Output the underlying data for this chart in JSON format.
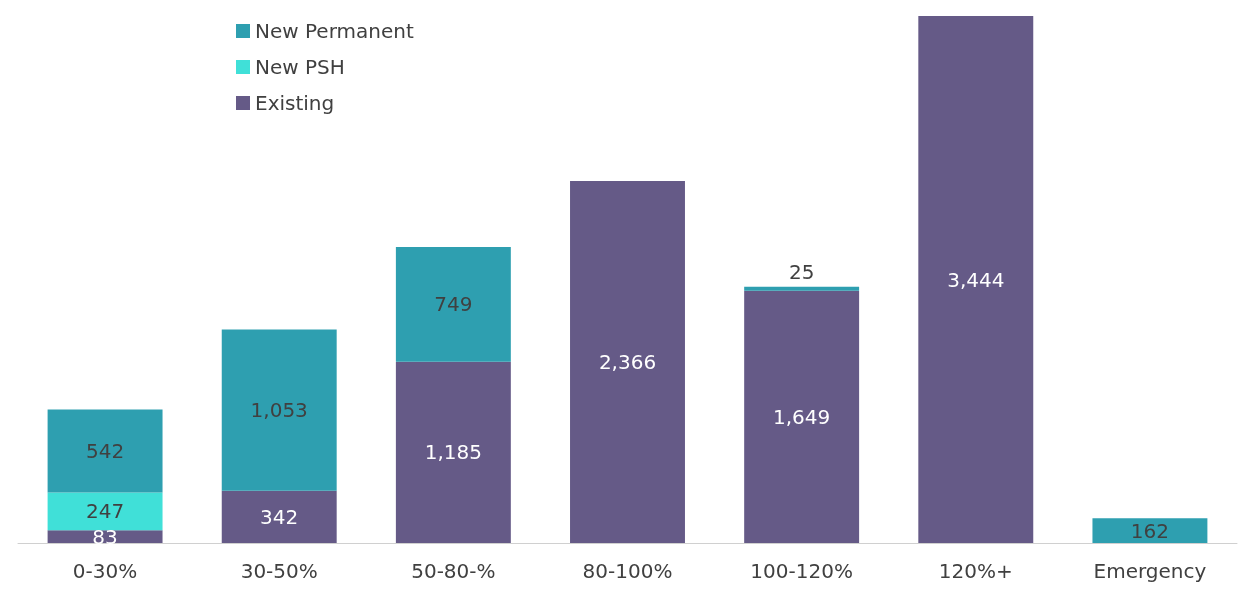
{
  "chart_data": {
    "type": "bar",
    "stacked": true,
    "categories": [
      "0-30%",
      "30-50%",
      "50-80-%",
      "80-100%",
      "100-120%",
      "120%+",
      "Emergency"
    ],
    "series": [
      {
        "name": "Existing",
        "color": "#655a87",
        "values": [
          83,
          342,
          1185,
          2366,
          1649,
          3444,
          null
        ],
        "value_labels": [
          "83",
          "342",
          "1,185",
          "2,366",
          "1,649",
          "3,444",
          null
        ]
      },
      {
        "name": "New PSH",
        "color": "#40e0d8",
        "values": [
          247,
          null,
          null,
          null,
          null,
          null,
          null
        ],
        "value_labels": [
          "247",
          null,
          null,
          null,
          null,
          null,
          null
        ]
      },
      {
        "name": "New Permanent",
        "color": "#2e9fb0",
        "values": [
          542,
          1053,
          749,
          null,
          25,
          null,
          162
        ],
        "value_labels": [
          "542",
          "1,053",
          "749",
          null,
          "25",
          null,
          "162"
        ]
      }
    ],
    "legend": "top left",
    "grid": false
  }
}
